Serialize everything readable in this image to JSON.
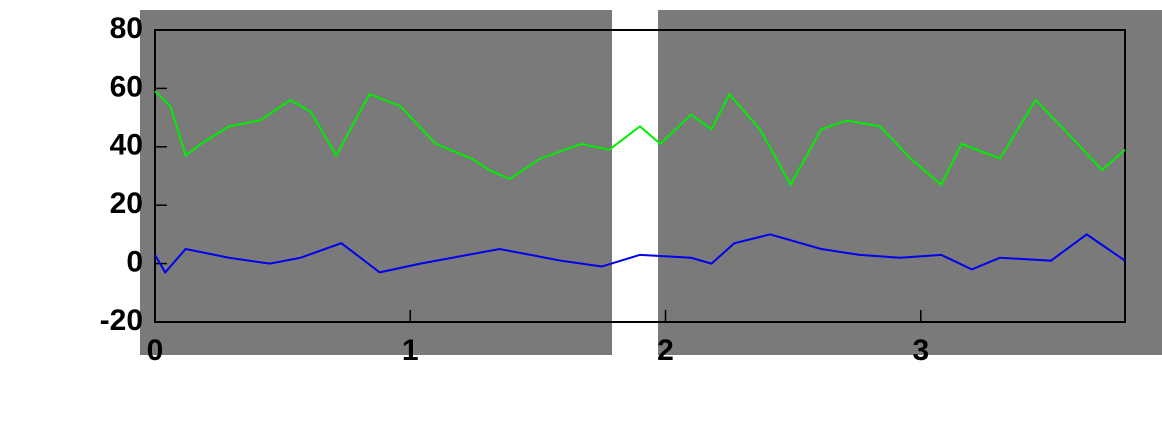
{
  "chart_data": {
    "type": "line",
    "xlim": [
      0,
      3.8
    ],
    "ylim": [
      -20,
      80
    ],
    "xticks": [
      0,
      1,
      2,
      3
    ],
    "yticks": [
      -20,
      0,
      20,
      40,
      60,
      80
    ],
    "series": [
      {
        "color": "#00ee00",
        "x": [
          0,
          0.06,
          0.12,
          0.18,
          0.29,
          0.41,
          0.53,
          0.61,
          0.71,
          0.84,
          0.96,
          1.1,
          1.24,
          1.31,
          1.39,
          1.51,
          1.67,
          1.78,
          1.9,
          1.98,
          2.1,
          2.18,
          2.25,
          2.37,
          2.49,
          2.61,
          2.71,
          2.84,
          2.96,
          3.08,
          3.16,
          3.31,
          3.45,
          3.55,
          3.71,
          3.8
        ],
        "values": [
          59,
          54,
          37,
          41,
          47,
          49,
          56,
          52,
          37,
          58,
          54,
          41,
          36,
          32,
          29,
          36,
          41,
          39,
          47,
          41,
          51,
          46,
          58,
          46,
          27,
          46,
          49,
          47,
          36,
          27,
          41,
          36,
          56,
          47,
          32,
          39
        ]
      },
      {
        "color": "#0000ee",
        "x": [
          0,
          0.04,
          0.12,
          0.29,
          0.45,
          0.57,
          0.73,
          0.88,
          1.04,
          1.35,
          1.59,
          1.75,
          1.9,
          2.1,
          2.18,
          2.27,
          2.41,
          2.61,
          2.76,
          2.92,
          3.08,
          3.2,
          3.31,
          3.51,
          3.65,
          3.8
        ],
        "values": [
          3,
          -3,
          5,
          2,
          0,
          2,
          7,
          -3,
          0,
          5,
          1,
          -1,
          3,
          2,
          0,
          7,
          10,
          5,
          3,
          2,
          3,
          -2,
          2,
          1,
          10,
          1
        ]
      }
    ]
  }
}
